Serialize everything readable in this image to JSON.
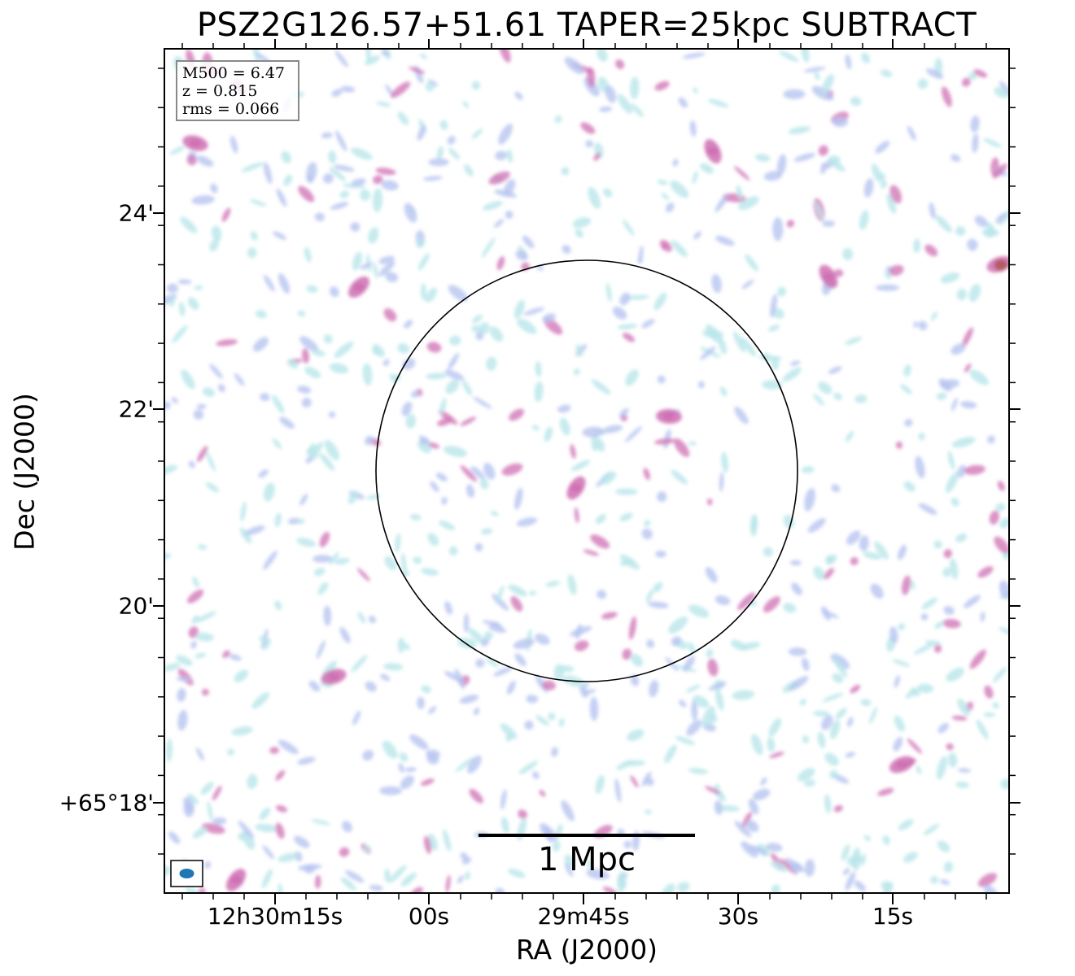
{
  "figure": {
    "title": "PSZ2G126.57+51.61 TAPER=25kpc SUBTRACT",
    "xlabel": "RA (J2000)",
    "ylabel": "Dec (J2000)",
    "x_ticks": [
      "12h30m15s",
      "00s",
      "29m45s",
      "30s",
      "15s"
    ],
    "y_ticks": [
      "24'",
      "22'",
      "20'",
      "+65°18'"
    ],
    "info": {
      "m500": "M500 = 6.47",
      "z": "z = 0.815",
      "rms": "rms = 0.066"
    },
    "scale_bar_label": "1 Mpc",
    "colors": {
      "low": "#b9e6ea",
      "mid": "#b6c4f0",
      "high": "#cf6fb3",
      "peak": "#b05a5a",
      "beam": "#1f77b4"
    }
  }
}
